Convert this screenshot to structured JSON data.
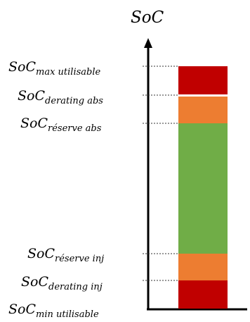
{
  "title": "SoC",
  "labels": [
    {
      "main": "SoC",
      "sub": "max utilisable"
    },
    {
      "main": "SoC",
      "sub": "derating abs"
    },
    {
      "main": "SoC",
      "sub": "réserve abs"
    },
    {
      "main": "SoC",
      "sub": "réserve inj"
    },
    {
      "main": "SoC",
      "sub": "derating inj"
    },
    {
      "main": "SoC",
      "sub": "min utilisable"
    }
  ],
  "colors": {
    "red": "#c00000",
    "orange": "#ed7d31",
    "green": "#70ad47",
    "axis": "#000000"
  },
  "icons": {
    "axis_arrow": "arrow-up-icon"
  }
}
